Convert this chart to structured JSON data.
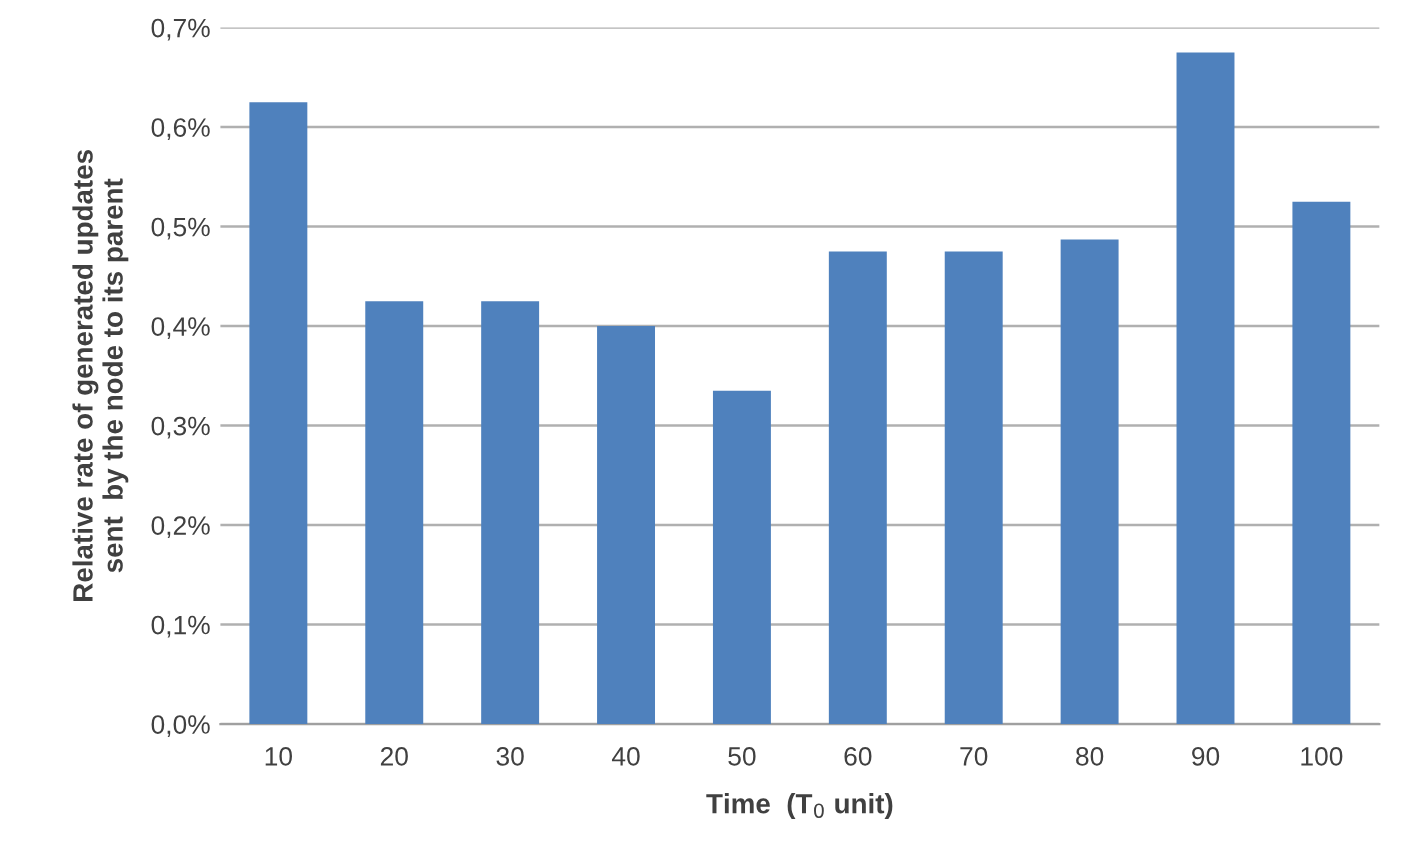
{
  "chart_data": {
    "type": "bar",
    "xlabel": "Time  (T$_{0}$ unit)",
    "ylabel": "Relative rate of generated updates\nsent  by the node to its parent",
    "categories": [
      "10",
      "20",
      "30",
      "40",
      "50",
      "60",
      "70",
      "80",
      "90",
      "100"
    ],
    "values": [
      0.625,
      0.425,
      0.425,
      0.4,
      0.335,
      0.475,
      0.475,
      0.487,
      0.675,
      0.525
    ],
    "color": "#4f81bd",
    "ylim": [
      0,
      0.7
    ],
    "yticks": [
      {
        "value": 0,
        "label": "0,0%"
      },
      {
        "value": 0.1,
        "label": "0,1%"
      },
      {
        "value": 0.2,
        "label": "0,2%"
      },
      {
        "value": 0.3,
        "label": "0,3%"
      },
      {
        "value": 0.4,
        "label": "0,4%"
      },
      {
        "value": 0.5,
        "label": "0,5%"
      },
      {
        "value": 0.6,
        "label": "0,6%"
      },
      {
        "value": 0.7,
        "label": "0,7%"
      }
    ],
    "grid": "y",
    "legend": false
  }
}
